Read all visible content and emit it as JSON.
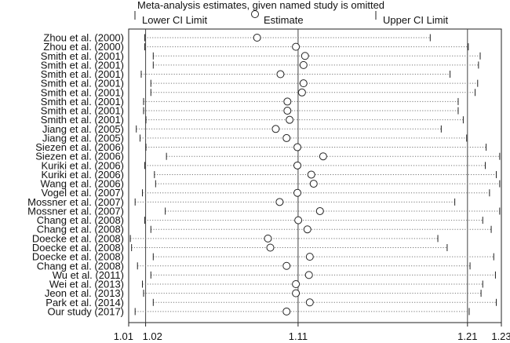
{
  "chart_data": {
    "type": "forest",
    "title": "Meta-analysis estimates, given named study is omitted",
    "legend": {
      "lower": "Lower CI Limit",
      "estimate": "Estimate",
      "upper": "Upper CI Limit",
      "placement": "top"
    },
    "xlim": [
      1.01,
      1.23
    ],
    "xticks": [
      {
        "value": 1.01,
        "label": "1.01"
      },
      {
        "value": 1.02,
        "label": "1.02"
      },
      {
        "value": 1.11,
        "label": "1.11"
      },
      {
        "value": 1.21,
        "label": "1.21"
      },
      {
        "value": 1.23,
        "label": "1.23"
      }
    ],
    "reference_lines": [
      1.02,
      1.11,
      1.21
    ],
    "studies": [
      {
        "label": "Zhou et al. (2000)",
        "lower": 1.0195,
        "estimate": 1.0858,
        "upper": 1.188
      },
      {
        "label": "Zhou et al. (2000)",
        "lower": 1.0195,
        "estimate": 1.1087,
        "upper": 1.2105
      },
      {
        "label": "Smith et al. (2001)",
        "lower": 1.0245,
        "estimate": 1.1141,
        "upper": 1.2175
      },
      {
        "label": "Smith et al. (2001)",
        "lower": 1.0245,
        "estimate": 1.1132,
        "upper": 1.2165
      },
      {
        "label": "Smith et al. (2001)",
        "lower": 1.0174,
        "estimate": 1.0996,
        "upper": 1.1997
      },
      {
        "label": "Smith et al. (2001)",
        "lower": 1.0231,
        "estimate": 1.1132,
        "upper": 1.216
      },
      {
        "label": "Smith et al. (2001)",
        "lower": 1.0231,
        "estimate": 1.1123,
        "upper": 1.2145
      },
      {
        "label": "Smith et al. (2001)",
        "lower": 1.0188,
        "estimate": 1.1037,
        "upper": 1.2045
      },
      {
        "label": "Smith et al. (2001)",
        "lower": 1.0188,
        "estimate": 1.1037,
        "upper": 1.2045
      },
      {
        "label": "Smith et al. (2001)",
        "lower": 1.0202,
        "estimate": 1.105,
        "upper": 1.2075
      },
      {
        "label": "Jiang et al. (2005)",
        "lower": 1.0145,
        "estimate": 1.0968,
        "upper": 1.1945
      },
      {
        "label": "Jiang et al. (2005)",
        "lower": 1.0167,
        "estimate": 1.1032,
        "upper": 1.2095
      },
      {
        "label": "Siezen et al. (2006)",
        "lower": 1.0202,
        "estimate": 1.1096,
        "upper": 1.221
      },
      {
        "label": "Siezen et al. (2006)",
        "lower": 1.0323,
        "estimate": 1.1248,
        "upper": 1.229
      },
      {
        "label": "Kuriki et al. (2006)",
        "lower": 1.0195,
        "estimate": 1.1096,
        "upper": 1.2205
      },
      {
        "label": "Kuriki et al. (2006)",
        "lower": 1.0252,
        "estimate": 1.1178,
        "upper": 1.227
      },
      {
        "label": "Wang et al. (2006)",
        "lower": 1.0259,
        "estimate": 1.1192,
        "upper": 1.229
      },
      {
        "label": "Vogel et al. (2007)",
        "lower": 1.0181,
        "estimate": 1.1096,
        "upper": 1.223
      },
      {
        "label": "Mossner et al. (2007)",
        "lower": 1.0138,
        "estimate": 1.0991,
        "upper": 1.2025
      },
      {
        "label": "Mossner et al. (2007)",
        "lower": 1.0316,
        "estimate": 1.1229,
        "upper": 1.229
      },
      {
        "label": "Chang et al. (2008)",
        "lower": 1.0195,
        "estimate": 1.1101,
        "upper": 1.219
      },
      {
        "label": "Chang et al. (2008)",
        "lower": 1.0231,
        "estimate": 1.1155,
        "upper": 1.224
      },
      {
        "label": "Doecke et al. (2008)",
        "lower": 1.011,
        "estimate": 1.0922,
        "upper": 1.1925
      },
      {
        "label": "Doecke et al. (2008)",
        "lower": 1.0117,
        "estimate": 1.0936,
        "upper": 1.198
      },
      {
        "label": "Doecke et al. (2008)",
        "lower": 1.0245,
        "estimate": 1.1169,
        "upper": 1.2255
      },
      {
        "label": "Chang et al. (2008)",
        "lower": 1.0152,
        "estimate": 1.1032,
        "upper": 1.2115
      },
      {
        "label": "Wu et al. (2011)",
        "lower": 1.0231,
        "estimate": 1.1164,
        "upper": 1.2265
      },
      {
        "label": "Wei et al. (2013)",
        "lower": 1.0181,
        "estimate": 1.1087,
        "upper": 1.219
      },
      {
        "label": "Jeon et al. (2013)",
        "lower": 1.0188,
        "estimate": 1.1087,
        "upper": 1.218
      },
      {
        "label": "Park et al. (2014)",
        "lower": 1.0245,
        "estimate": 1.1169,
        "upper": 1.227
      },
      {
        "label": "Our study (2017)",
        "lower": 1.0138,
        "estimate": 1.1032,
        "upper": 1.211
      }
    ]
  }
}
